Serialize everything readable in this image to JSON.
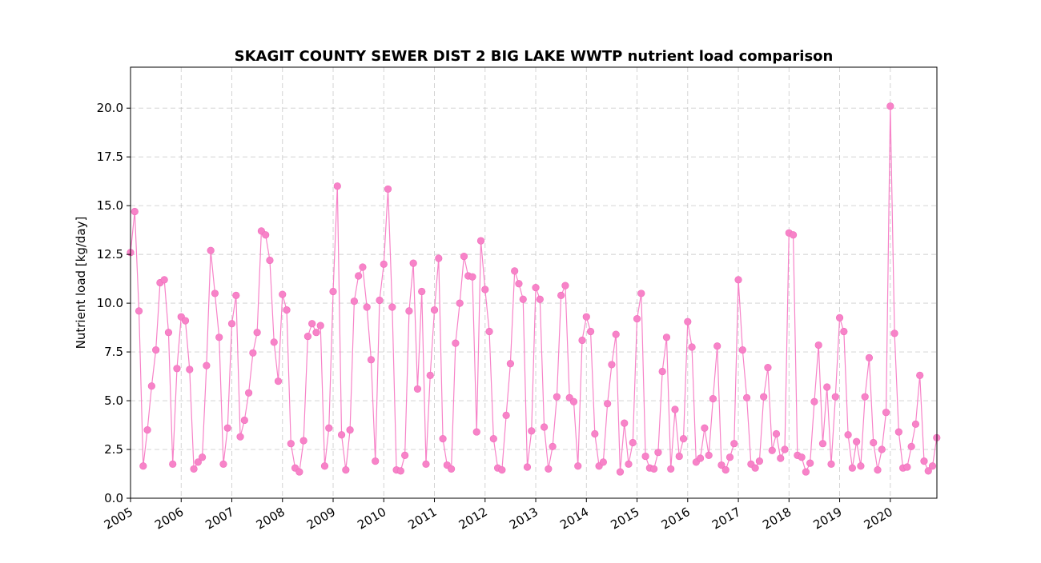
{
  "chart_data": {
    "type": "line",
    "title": "SKAGIT COUNTY SEWER DIST 2 BIG LAKE WWTP nutrient load comparison",
    "xlabel": "",
    "ylabel": "Nutrient load [kg/day]",
    "xlim": [
      2005.0,
      2020.92
    ],
    "ylim": [
      0,
      22.1
    ],
    "x_ticks": [
      2005,
      2006,
      2007,
      2008,
      2009,
      2010,
      2011,
      2012,
      2013,
      2014,
      2015,
      2016,
      2017,
      2018,
      2019,
      2020
    ],
    "x_tick_labels": [
      "2005",
      "2006",
      "2007",
      "2008",
      "2009",
      "2010",
      "2011",
      "2012",
      "2013",
      "2014",
      "2015",
      "2016",
      "2017",
      "2018",
      "2019",
      "2020"
    ],
    "y_ticks": [
      0,
      2.5,
      5,
      7.5,
      10,
      12.5,
      15,
      17.5,
      20
    ],
    "y_tick_labels": [
      "0.0",
      "2.5",
      "5.0",
      "7.5",
      "10.0",
      "12.5",
      "15.0",
      "17.5",
      "20.0"
    ],
    "grid": true,
    "color": "#f783c8",
    "series": [
      {
        "name": "",
        "x": [
          "2005-01",
          "2005-02",
          "2005-03",
          "2005-04",
          "2005-05",
          "2005-06",
          "2005-07",
          "2005-08",
          "2005-09",
          "2005-10",
          "2005-11",
          "2005-12",
          "2006-01",
          "2006-02",
          "2006-03",
          "2006-04",
          "2006-05",
          "2006-06",
          "2006-07",
          "2006-08",
          "2006-09",
          "2006-10",
          "2006-11",
          "2006-12",
          "2007-01",
          "2007-02",
          "2007-03",
          "2007-04",
          "2007-05",
          "2007-06",
          "2007-07",
          "2007-08",
          "2007-09",
          "2007-10",
          "2007-11",
          "2007-12",
          "2008-01",
          "2008-02",
          "2008-03",
          "2008-04",
          "2008-05",
          "2008-06",
          "2008-07",
          "2008-08",
          "2008-09",
          "2008-10",
          "2008-11",
          "2008-12",
          "2009-01",
          "2009-02",
          "2009-03",
          "2009-04",
          "2009-05",
          "2009-06",
          "2009-07",
          "2009-08",
          "2009-09",
          "2009-10",
          "2009-11",
          "2009-12",
          "2010-01",
          "2010-02",
          "2010-03",
          "2010-04",
          "2010-05",
          "2010-06",
          "2010-07",
          "2010-08",
          "2010-09",
          "2010-10",
          "2010-11",
          "2010-12",
          "2011-01",
          "2011-02",
          "2011-03",
          "2011-04",
          "2011-05",
          "2011-06",
          "2011-07",
          "2011-08",
          "2011-09",
          "2011-10",
          "2011-11",
          "2011-12",
          "2012-01",
          "2012-02",
          "2012-03",
          "2012-04",
          "2012-05",
          "2012-06",
          "2012-07",
          "2012-08",
          "2012-09",
          "2012-10",
          "2012-11",
          "2012-12",
          "2013-01",
          "2013-02",
          "2013-03",
          "2013-04",
          "2013-05",
          "2013-06",
          "2013-07",
          "2013-08",
          "2013-09",
          "2013-10",
          "2013-11",
          "2013-12",
          "2014-01",
          "2014-02",
          "2014-03",
          "2014-04",
          "2014-05",
          "2014-06",
          "2014-07",
          "2014-08",
          "2014-09",
          "2014-10",
          "2014-11",
          "2014-12",
          "2015-01",
          "2015-02",
          "2015-03",
          "2015-04",
          "2015-05",
          "2015-06",
          "2015-07",
          "2015-08",
          "2015-09",
          "2015-10",
          "2015-11",
          "2015-12",
          "2016-01",
          "2016-02",
          "2016-03",
          "2016-04",
          "2016-05",
          "2016-06",
          "2016-07",
          "2016-08",
          "2016-09",
          "2016-10",
          "2016-11",
          "2016-12",
          "2017-01",
          "2017-02",
          "2017-03",
          "2017-04",
          "2017-05",
          "2017-06",
          "2017-07",
          "2017-08",
          "2017-09",
          "2017-10",
          "2017-11",
          "2017-12",
          "2018-01",
          "2018-02",
          "2018-03",
          "2018-04",
          "2018-05",
          "2018-06",
          "2018-07",
          "2018-08",
          "2018-09",
          "2018-10",
          "2018-11",
          "2018-12",
          "2019-01",
          "2019-02",
          "2019-03",
          "2019-04",
          "2019-05",
          "2019-06",
          "2019-07",
          "2019-08",
          "2019-09",
          "2019-10",
          "2019-11",
          "2019-12",
          "2020-01",
          "2020-02",
          "2020-03",
          "2020-04",
          "2020-05",
          "2020-06",
          "2020-07",
          "2020-08",
          "2020-09",
          "2020-10",
          "2020-11",
          "2020-12"
        ],
        "y": [
          12.6,
          14.7,
          9.6,
          1.65,
          3.5,
          5.75,
          7.6,
          11.05,
          11.2,
          8.5,
          1.75,
          6.65,
          9.3,
          9.1,
          6.6,
          1.5,
          1.85,
          2.1,
          6.8,
          12.7,
          10.5,
          8.25,
          1.75,
          3.6,
          8.95,
          10.4,
          3.15,
          4.0,
          5.4,
          7.45,
          8.5,
          13.7,
          13.5,
          12.2,
          8.0,
          6.0,
          10.45,
          9.65,
          2.8,
          1.55,
          1.35,
          2.95,
          8.3,
          8.95,
          8.5,
          8.85,
          1.65,
          3.6,
          10.6,
          16.0,
          3.25,
          1.45,
          3.5,
          10.1,
          11.4,
          11.85,
          9.8,
          7.1,
          1.9,
          10.15,
          12.0,
          15.85,
          9.8,
          1.45,
          1.4,
          2.2,
          9.6,
          12.05,
          5.6,
          10.6,
          1.75,
          6.3,
          9.65,
          12.3,
          3.05,
          1.7,
          1.5,
          7.95,
          10.0,
          12.4,
          11.4,
          11.35,
          3.4,
          13.2,
          10.7,
          8.55,
          3.05,
          1.55,
          1.45,
          4.25,
          6.9,
          11.65,
          11.0,
          10.2,
          1.6,
          3.45,
          10.8,
          10.2,
          3.65,
          1.5,
          2.65,
          5.2,
          10.4,
          10.9,
          5.15,
          4.95,
          1.65,
          8.1,
          9.3,
          8.55,
          3.3,
          1.65,
          1.85,
          4.85,
          6.85,
          8.4,
          1.35,
          3.85,
          1.75,
          2.85,
          9.2,
          10.5,
          2.15,
          1.55,
          1.5,
          2.35,
          6.5,
          8.25,
          1.5,
          4.55,
          2.15,
          3.05,
          9.05,
          7.75,
          1.85,
          2.05,
          3.6,
          2.2,
          5.1,
          7.8,
          1.7,
          1.45,
          2.1,
          2.8,
          11.2,
          7.6,
          5.15,
          1.75,
          1.55,
          1.9,
          5.2,
          6.7,
          2.45,
          3.3,
          2.05,
          2.5,
          13.6,
          13.5,
          2.2,
          2.1,
          1.35,
          1.8,
          4.95,
          7.85,
          2.8,
          5.7,
          1.75,
          5.2,
          9.25,
          8.55,
          3.25,
          1.55,
          2.9,
          1.65,
          5.2,
          7.2,
          2.85,
          1.45,
          2.5,
          4.4,
          20.1,
          8.45,
          3.4,
          1.55,
          1.6,
          2.65,
          3.8,
          6.3,
          1.9,
          1.4,
          1.65,
          3.1
        ]
      }
    ]
  }
}
